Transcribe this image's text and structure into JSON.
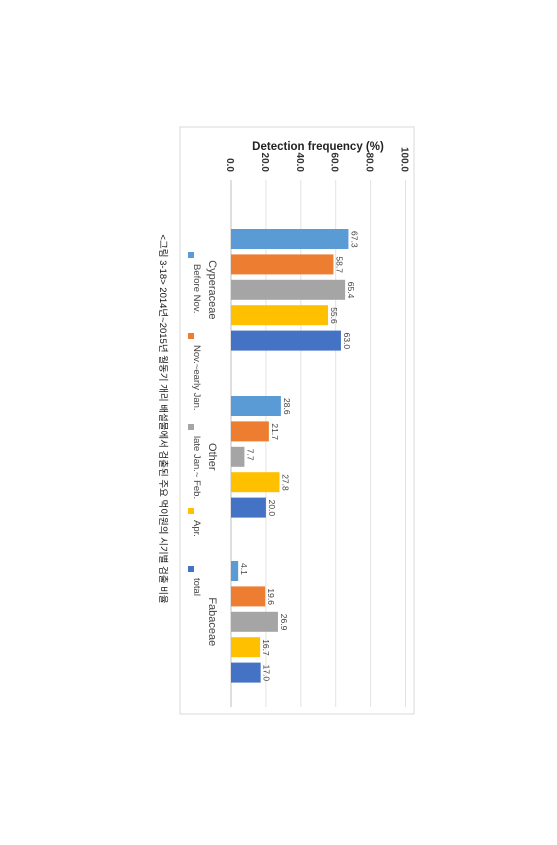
{
  "caption": "<그림 3-18> 2014년~2015년 월동기 개리 배설물에서 검출된 주요 먹이원의 시기별 검출 비율",
  "chart_data": {
    "type": "bar",
    "orientation": "rotated-90-clockwise",
    "title": "Detection frequency (%)",
    "categories": [
      "Cyperaceae",
      "Other",
      "Fabaceae"
    ],
    "ylim": [
      0,
      100
    ],
    "yticks": [
      0,
      20,
      40,
      60,
      80,
      100
    ],
    "ytick_labels": [
      "0.0",
      "20.0",
      "40.0",
      "60.0",
      "80.0",
      "100.0"
    ],
    "grid": true,
    "legend_position": "bottom",
    "series": [
      {
        "name": "Before Nov.",
        "color": "#5B9BD5",
        "values": [
          67.3,
          28.6,
          4.1
        ],
        "labels": [
          "67.3",
          "28.6",
          "4.1"
        ]
      },
      {
        "name": "Nov.~early Jan.",
        "color": "#ED7D31",
        "values": [
          58.7,
          21.7,
          19.6
        ],
        "labels": [
          "58.7",
          "21.7",
          "19.6"
        ]
      },
      {
        "name": "late Jan.~ Feb.",
        "color": "#A5A5A5",
        "values": [
          65.4,
          7.7,
          26.9
        ],
        "labels": [
          "65.4",
          "7.7",
          "26.9"
        ]
      },
      {
        "name": "Apr.",
        "color": "#FFC000",
        "values": [
          55.6,
          27.8,
          16.7
        ],
        "labels": [
          "55.6",
          "27.8",
          "16.7"
        ]
      },
      {
        "name": "total",
        "color": "#4472C4",
        "values": [
          63.0,
          20.0,
          17.0
        ],
        "labels": [
          "63.0",
          "20.0",
          "17.0"
        ]
      }
    ]
  }
}
